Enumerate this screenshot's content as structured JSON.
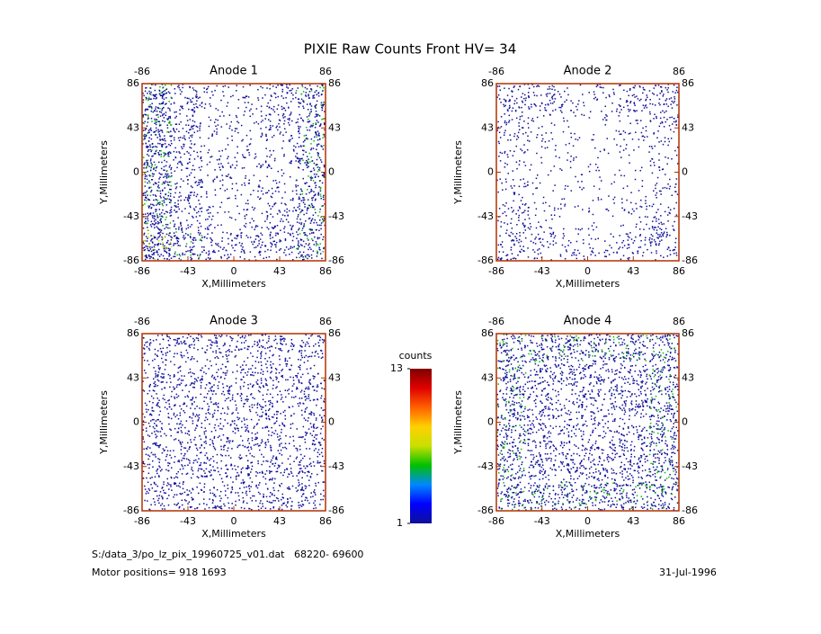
{
  "title": "PIXIE Raw Counts Front HV= 34",
  "chart_data": [
    {
      "type": "heatmap",
      "title": "Anode 1",
      "xlabel": "X,Millimeters",
      "ylabel": "Y,Millimeters",
      "xlim": [
        -86,
        86
      ],
      "ylim": [
        -86,
        86
      ],
      "xticks": [
        -86,
        -43,
        0,
        43,
        86
      ],
      "yticks": [
        -86,
        -43,
        0,
        43,
        86
      ],
      "top_xticks": [
        -86,
        86
      ],
      "density": [
        [
          4,
          2,
          1,
          1,
          2,
          3
        ],
        [
          4,
          2,
          1,
          1,
          2,
          3
        ],
        [
          4,
          2,
          1,
          1,
          1,
          3
        ],
        [
          4,
          2,
          1,
          1,
          1,
          3
        ],
        [
          4,
          2,
          1,
          1,
          2,
          3
        ],
        [
          5,
          3,
          2,
          2,
          2,
          3
        ]
      ]
    },
    {
      "type": "heatmap",
      "title": "Anode 2",
      "xlabel": "X,Millimeters",
      "ylabel": "Y,Millimeters",
      "xlim": [
        -86,
        86
      ],
      "ylim": [
        -86,
        86
      ],
      "xticks": [
        -86,
        -43,
        0,
        43,
        86
      ],
      "yticks": [
        -86,
        -43,
        0,
        43,
        86
      ],
      "top_xticks": [
        -86,
        86
      ],
      "density": [
        [
          2,
          2,
          1,
          1,
          2,
          2
        ],
        [
          1.5,
          1,
          0.5,
          0.5,
          1,
          1.5
        ],
        [
          1,
          0.5,
          0.5,
          0.5,
          0.5,
          1
        ],
        [
          1,
          0.5,
          0.5,
          0.5,
          0.5,
          1
        ],
        [
          1.5,
          1,
          0.5,
          0.5,
          1,
          1.5
        ],
        [
          2,
          1.5,
          1,
          1,
          1.5,
          2
        ]
      ]
    },
    {
      "type": "heatmap",
      "title": "Anode 3",
      "xlabel": "X,Millimeters",
      "ylabel": "Y,Millimeters",
      "xlim": [
        -86,
        86
      ],
      "ylim": [
        -86,
        86
      ],
      "xticks": [
        -86,
        -43,
        0,
        43,
        86
      ],
      "yticks": [
        -86,
        -43,
        0,
        43,
        86
      ],
      "top_xticks": [
        -86,
        86
      ],
      "density": [
        [
          2,
          2,
          2,
          2,
          2,
          2
        ],
        [
          2,
          2,
          2,
          2,
          2,
          2
        ],
        [
          2,
          2,
          2,
          2,
          2,
          2
        ],
        [
          2,
          2,
          2,
          2,
          2,
          2
        ],
        [
          2,
          2,
          2,
          2,
          2,
          2
        ],
        [
          2,
          2,
          2,
          2,
          2,
          2
        ]
      ]
    },
    {
      "type": "heatmap",
      "title": "Anode 4",
      "xlabel": "X,Millimeters",
      "ylabel": "Y,Millimeters",
      "xlim": [
        -86,
        86
      ],
      "ylim": [
        -86,
        86
      ],
      "xticks": [
        -86,
        -43,
        0,
        43,
        86
      ],
      "yticks": [
        -86,
        -43,
        0,
        43,
        86
      ],
      "top_xticks": [
        -86,
        86
      ],
      "density": [
        [
          3,
          3,
          3,
          3,
          3,
          3
        ],
        [
          3,
          2.5,
          2.5,
          2.5,
          2.5,
          3
        ],
        [
          3,
          2.5,
          2,
          2,
          2.5,
          3
        ],
        [
          3,
          2.5,
          2,
          2,
          2.5,
          3
        ],
        [
          3,
          2.5,
          2.5,
          2.5,
          2.5,
          3
        ],
        [
          3,
          3,
          3,
          3,
          3,
          3
        ]
      ]
    }
  ],
  "colorbar": {
    "label": "counts",
    "lim": [
      1,
      13
    ],
    "ticks": [
      1,
      13
    ],
    "colors": [
      "#10109a",
      "#0000ff",
      "#0088ff",
      "#00c000",
      "#c8e000",
      "#ffd000",
      "#ff6000",
      "#e00000",
      "#800000"
    ]
  },
  "footer": {
    "file": "S:/data_3/po_lz_pix_19960725_v01.dat   68220- 69600",
    "motor": "Motor positions= 918 1693",
    "date": "31-Jul-1996"
  }
}
